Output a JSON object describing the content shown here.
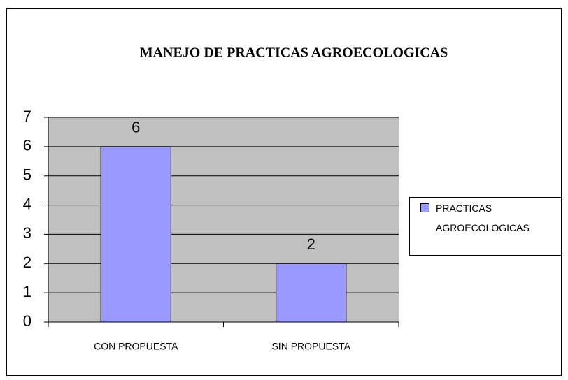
{
  "chart_data": {
    "type": "bar",
    "title": "MANEJO DE PRACTICAS AGROECOLOGICAS",
    "categories": [
      "CON PROPUESTA",
      "SIN PROPUESTA"
    ],
    "series": [
      {
        "name": "PRACTICAS AGROECOLOGICAS",
        "color": "#9999ff",
        "values": [
          6,
          2
        ]
      }
    ],
    "ylim": [
      0,
      7
    ],
    "yticks": [
      0,
      1,
      2,
      3,
      4,
      5,
      6,
      7
    ],
    "grid": true,
    "legend": "right"
  }
}
